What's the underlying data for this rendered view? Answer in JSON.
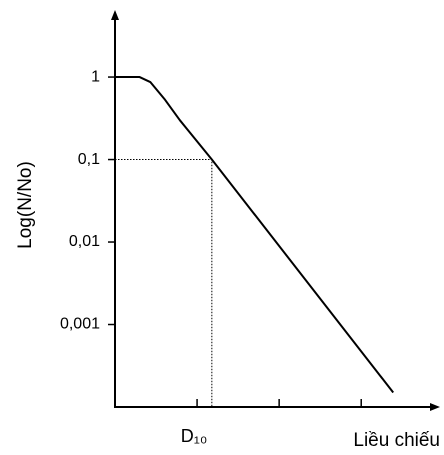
{
  "chart_data": {
    "type": "line",
    "y_label": "Log(N/No)",
    "x_label": "Liều chiếu",
    "x": [
      0,
      0.3,
      0.43,
      0.61,
      0.79,
      1.18,
      3.39
    ],
    "series": [
      {
        "color": "#000000",
        "values": [
          1,
          1,
          0.87,
          0.53,
          0.3,
          0.1,
          0.00015
        ]
      }
    ],
    "reference": {
      "x": 1.18,
      "y": 0.1
    },
    "xlim": [
      0,
      3.96
    ],
    "xticks": [
      {
        "value": 1,
        "label": "D₁₀"
      },
      {
        "value": 2,
        "label": null
      },
      {
        "value": 3,
        "label": null
      }
    ],
    "ylim": [
      0.0001,
      6.5
    ],
    "yticks": [
      1,
      {
        "value": 0.1,
        "label": "0,1"
      },
      {
        "value": 0.01,
        "label": "0,01"
      },
      {
        "value": 0.001,
        "label": "0,001"
      }
    ],
    "log_y": true
  }
}
